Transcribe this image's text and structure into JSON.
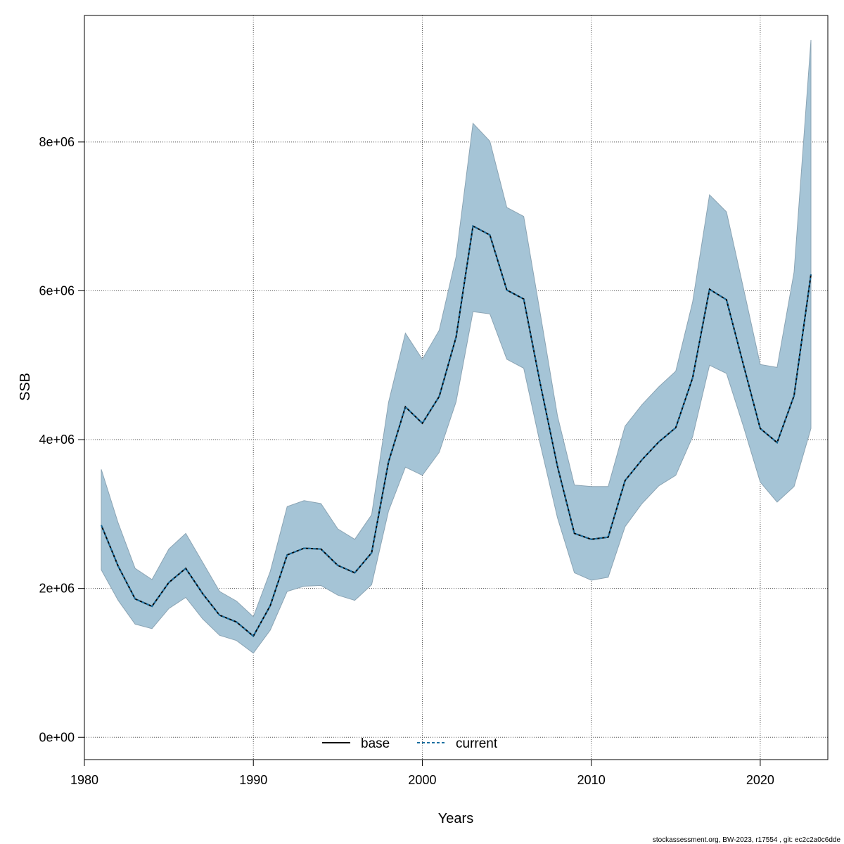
{
  "chart_data": {
    "type": "area",
    "xlabel": "Years",
    "ylabel": "SSB",
    "xlim": [
      1980,
      2024
    ],
    "ylim": [
      -300000,
      9700000
    ],
    "x_ticks": [
      1980,
      1990,
      2000,
      2010,
      2020
    ],
    "y_ticks": [
      0,
      2000000,
      4000000,
      6000000,
      8000000
    ],
    "y_tick_labels": [
      "0e+00",
      "2e+06",
      "4e+06",
      "6e+06",
      "8e+06"
    ],
    "grid": true,
    "legend_position": "bottom",
    "legend": [
      {
        "name": "base",
        "style": "solid",
        "color": "#000000"
      },
      {
        "name": "current",
        "style": "dashed",
        "color": "#1a6fa0"
      }
    ],
    "x": [
      1981,
      1982,
      1983,
      1984,
      1985,
      1986,
      1987,
      1988,
      1989,
      1990,
      1991,
      1992,
      1993,
      1994,
      1995,
      1996,
      1997,
      1998,
      1999,
      2000,
      2001,
      2002,
      2003,
      2004,
      2005,
      2006,
      2007,
      2008,
      2009,
      2010,
      2011,
      2012,
      2013,
      2014,
      2015,
      2016,
      2017,
      2018,
      2019,
      2020,
      2021,
      2022,
      2023
    ],
    "series": [
      {
        "name": "base",
        "values": [
          2850000,
          2300000,
          1860000,
          1760000,
          2080000,
          2270000,
          1930000,
          1640000,
          1550000,
          1360000,
          1770000,
          2450000,
          2540000,
          2530000,
          2310000,
          2210000,
          2480000,
          3700000,
          4440000,
          4220000,
          4580000,
          5380000,
          6870000,
          6750000,
          6010000,
          5890000,
          4730000,
          3640000,
          2740000,
          2660000,
          2690000,
          3450000,
          3730000,
          3970000,
          4160000,
          4830000,
          6020000,
          5880000,
          5010000,
          4150000,
          3960000,
          4590000,
          6220000
        ]
      },
      {
        "name": "current",
        "values": [
          2850000,
          2300000,
          1860000,
          1760000,
          2080000,
          2270000,
          1930000,
          1640000,
          1550000,
          1360000,
          1770000,
          2450000,
          2540000,
          2530000,
          2310000,
          2210000,
          2480000,
          3700000,
          4440000,
          4220000,
          4580000,
          5380000,
          6870000,
          6750000,
          6010000,
          5890000,
          4730000,
          3640000,
          2740000,
          2660000,
          2690000,
          3450000,
          3730000,
          3970000,
          4160000,
          4830000,
          6020000,
          5880000,
          5010000,
          4150000,
          3960000,
          4590000,
          6220000
        ]
      }
    ],
    "band": {
      "upper": [
        3600000,
        2880000,
        2270000,
        2120000,
        2530000,
        2740000,
        2350000,
        1960000,
        1830000,
        1620000,
        2230000,
        3100000,
        3180000,
        3140000,
        2800000,
        2660000,
        2990000,
        4500000,
        5430000,
        5080000,
        5470000,
        6460000,
        8250000,
        8010000,
        7120000,
        7000000,
        5670000,
        4320000,
        3390000,
        3370000,
        3370000,
        4180000,
        4470000,
        4710000,
        4920000,
        5850000,
        7290000,
        7060000,
        6040000,
        5010000,
        4970000,
        6250000,
        9370000
      ],
      "lower": [
        2250000,
        1840000,
        1520000,
        1460000,
        1730000,
        1880000,
        1590000,
        1370000,
        1300000,
        1130000,
        1440000,
        1960000,
        2030000,
        2040000,
        1910000,
        1840000,
        2050000,
        3040000,
        3630000,
        3520000,
        3830000,
        4510000,
        5720000,
        5690000,
        5080000,
        4960000,
        3920000,
        2950000,
        2210000,
        2110000,
        2150000,
        2830000,
        3140000,
        3380000,
        3520000,
        4040000,
        5000000,
        4890000,
        4180000,
        3430000,
        3160000,
        3370000,
        4150000
      ],
      "fill": "#a5c4d6",
      "stroke": "#8ba4b4"
    }
  },
  "footer": "stockassessment.org, BW-2023, r17554 , git: ec2c2a0c6dde"
}
